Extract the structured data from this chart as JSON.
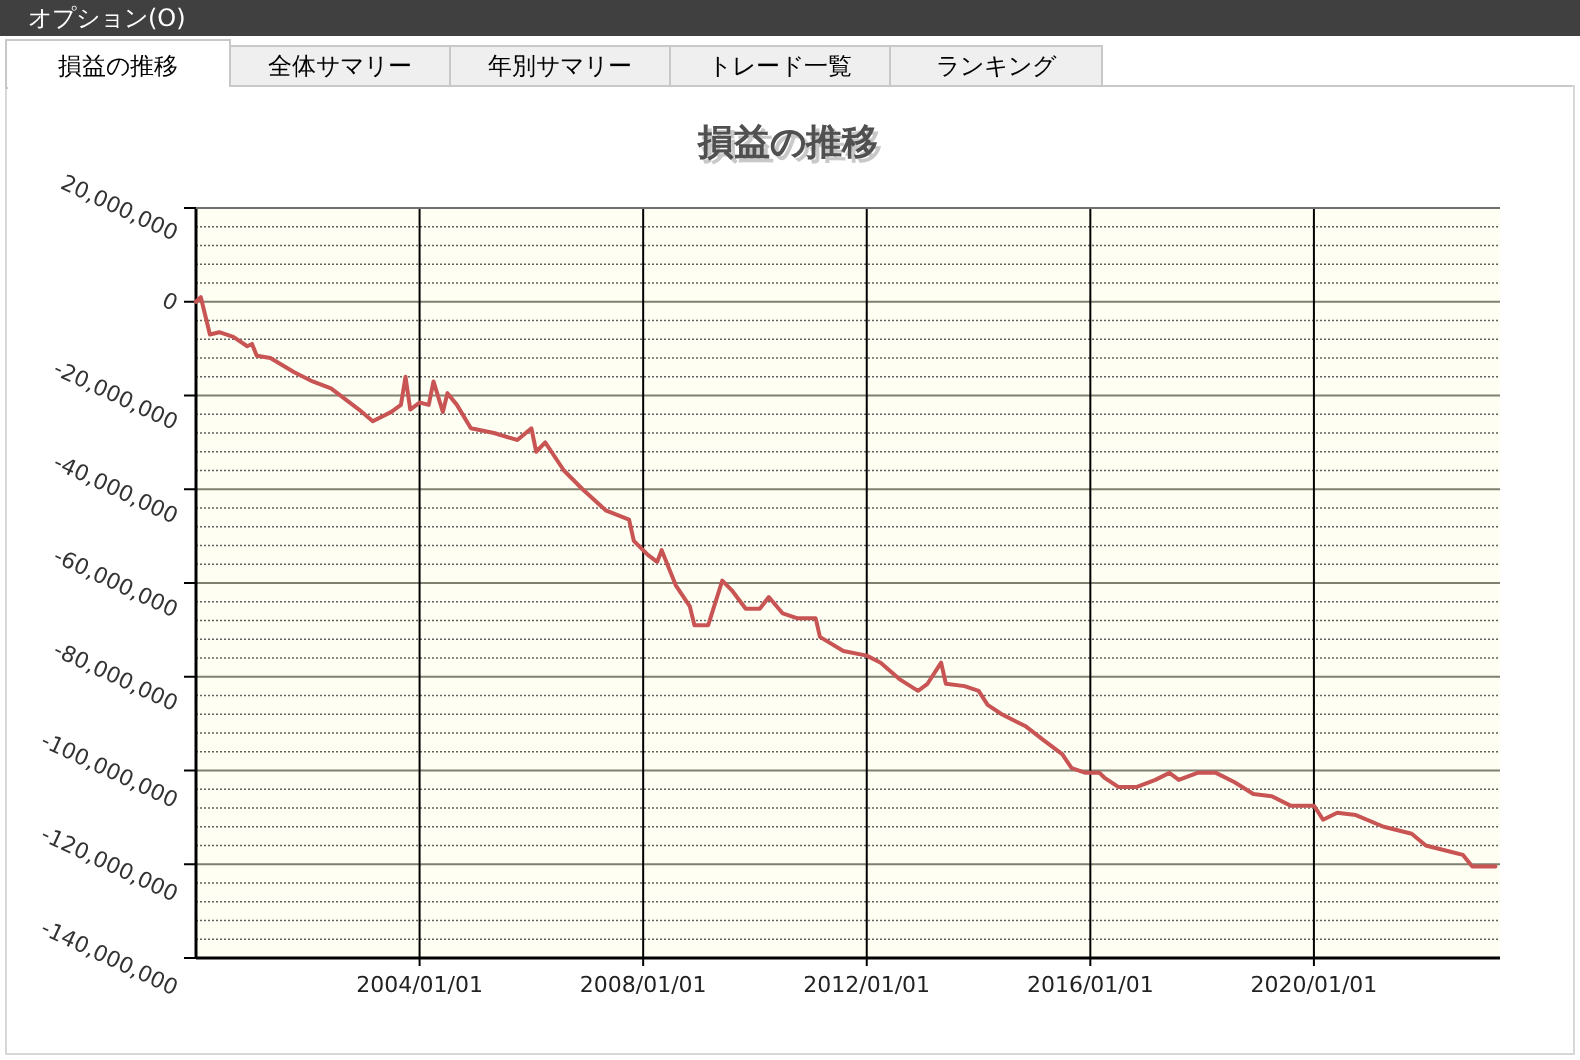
{
  "chart_data": {
    "type": "line",
    "title": "損益の推移",
    "annotations": [
      "オプション(O)",
      "損益の推移",
      "全体サマリー",
      "年別サマリー",
      "トレード一覧",
      "ランキング"
    ],
    "x": [
      "2000-01",
      "2000-02",
      "2000-04",
      "2000-06",
      "2000-09",
      "2000-12",
      "2001-01",
      "2001-02",
      "2001-05",
      "2001-10",
      "2002-02",
      "2002-06",
      "2002-12",
      "2003-03",
      "2003-07",
      "2003-09",
      "2003-10",
      "2003-11",
      "2004-01",
      "2004-03",
      "2004-04",
      "2004-06",
      "2004-07",
      "2004-09",
      "2004-12",
      "2005-05",
      "2005-10",
      "2006-01",
      "2006-02",
      "2006-04",
      "2006-08",
      "2006-12",
      "2007-05",
      "2007-10",
      "2007-11",
      "2008-02",
      "2008-04",
      "2008-05",
      "2008-08",
      "2008-11",
      "2008-12",
      "2009-03",
      "2009-06",
      "2009-08",
      "2009-11",
      "2010-02",
      "2010-04",
      "2010-07",
      "2010-10",
      "2011-02",
      "2011-03",
      "2011-08",
      "2012-01",
      "2012-04",
      "2012-08",
      "2012-12",
      "2013-02",
      "2013-05",
      "2013-06",
      "2013-10",
      "2014-01",
      "2014-03",
      "2014-06",
      "2014-11",
      "2015-03",
      "2015-07",
      "2015-09",
      "2015-12",
      "2016-03",
      "2016-04",
      "2016-07",
      "2016-11",
      "2017-03",
      "2017-06",
      "2017-08",
      "2017-12",
      "2018-04",
      "2018-08",
      "2018-12",
      "2019-04",
      "2019-08",
      "2020-01",
      "2020-03",
      "2020-06",
      "2020-10",
      "2021-04",
      "2021-10",
      "2022-01",
      "2022-07",
      "2022-09",
      "2022-11",
      "2023-02",
      "2023-04"
    ],
    "series": [
      {
        "color": "#c85454",
        "values": [
          0,
          1000000,
          -7000000,
          -6500000,
          -7500000,
          -9500000,
          -9000000,
          -11500000,
          -12000000,
          -15000000,
          -17000000,
          -18500000,
          -23000000,
          -25500000,
          -23500000,
          -22000000,
          -16000000,
          -23000000,
          -21500000,
          -22000000,
          -17000000,
          -23500000,
          -19500000,
          -22000000,
          -27000000,
          -28000000,
          -29500000,
          -27000000,
          -32000000,
          -30000000,
          -36000000,
          -40000000,
          -44500000,
          -46500000,
          -51000000,
          -54000000,
          -55500000,
          -53000000,
          -60500000,
          -65000000,
          -69000000,
          -69000000,
          -59500000,
          -61500000,
          -65500000,
          -65500000,
          -63000000,
          -66500000,
          -67500000,
          -67500000,
          -71500000,
          -74500000,
          -75500000,
          -77000000,
          -80500000,
          -83000000,
          -81500000,
          -77000000,
          -81500000,
          -82000000,
          -83000000,
          -86000000,
          -88000000,
          -90500000,
          -93500000,
          -96500000,
          -99500000,
          -100500000,
          -100500000,
          -101500000,
          -103500000,
          -103500000,
          -102000000,
          -100500000,
          -102000000,
          -100500000,
          -100500000,
          -102500000,
          -105000000,
          -105500000,
          -107500000,
          -107500000,
          -110500000,
          -109000000,
          -109500000,
          -112000000,
          -113500000,
          -116000000,
          -117500000,
          -118000000,
          -120500000,
          -120500000,
          -120500000
        ]
      }
    ],
    "xlim": [
      "2000-01",
      "2023-05"
    ],
    "xticks": [
      {
        "value": "2004-01-01",
        "label": "2004/01/01"
      },
      {
        "value": "2008-01-01",
        "label": "2008/01/01"
      },
      {
        "value": "2012-01-01",
        "label": "2012/01/01"
      },
      {
        "value": "2016-01-01",
        "label": "2016/01/01"
      },
      {
        "value": "2020-01-01",
        "label": "2020/01/01"
      }
    ],
    "ylim": [
      -140000000,
      20000000
    ],
    "yticks": [
      {
        "value": 20000000,
        "label": "20,000,000"
      },
      0,
      {
        "value": -20000000,
        "label": "-20,000,000"
      },
      {
        "value": -40000000,
        "label": "-40,000,000"
      },
      {
        "value": -60000000,
        "label": "-60,000,000"
      },
      {
        "value": -80000000,
        "label": "-80,000,000"
      },
      {
        "value": -100000000,
        "label": "-100,000,000"
      },
      {
        "value": -120000000,
        "label": "-120,000,000"
      },
      {
        "value": -140000000,
        "label": "-140,000,000"
      }
    ],
    "grid": true,
    "line_style": "solid",
    "marker": "none"
  }
}
